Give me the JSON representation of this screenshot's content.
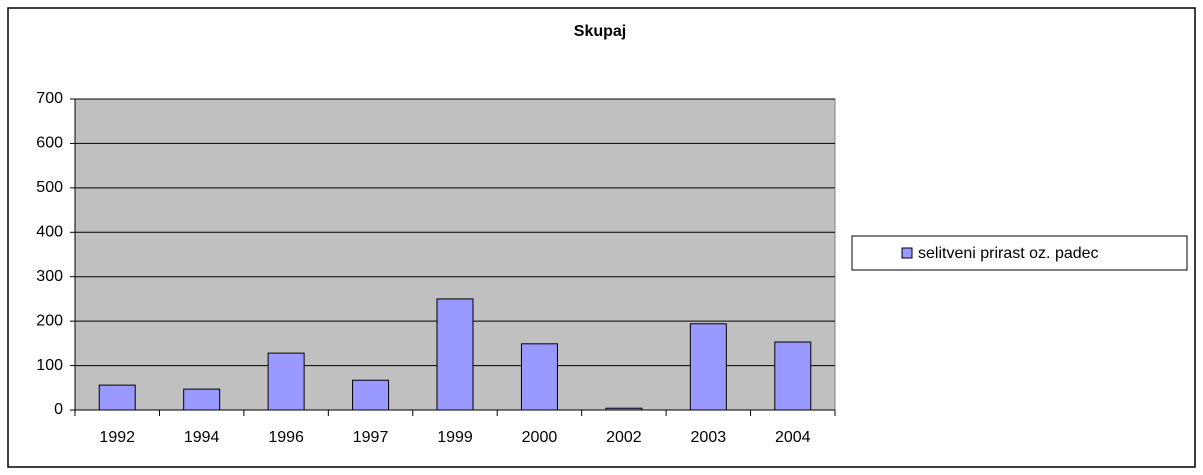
{
  "chart_data": {
    "type": "bar",
    "title": "Skupaj",
    "categories": [
      "1992",
      "1994",
      "1996",
      "1997",
      "1999",
      "2000",
      "2002",
      "2003",
      "2004"
    ],
    "series": [
      {
        "name": "selitveni prirast oz. padec",
        "color": "#9999ff",
        "values": [
          56,
          47,
          128,
          67,
          250,
          149,
          4,
          194,
          153
        ]
      }
    ],
    "ylim": [
      0,
      700
    ],
    "yticks": [
      0,
      100,
      200,
      300,
      400,
      500,
      600,
      700
    ],
    "grid": true,
    "legend": "right",
    "plot_background": "#c0c0c0"
  }
}
